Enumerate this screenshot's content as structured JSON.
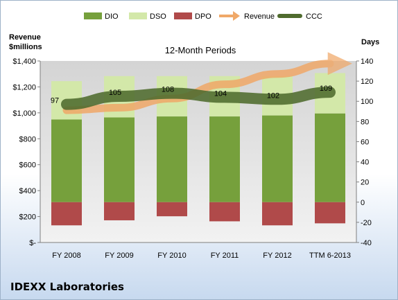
{
  "company": "IDEXX Laboratories",
  "chart_data": {
    "type": "bar",
    "title": "12-Month Periods",
    "ylabel_left": [
      "Revenue",
      "$millions"
    ],
    "ylabel_right": "Days",
    "categories": [
      "FY 2008",
      "FY 2009",
      "FY 2010",
      "FY 2011",
      "FY 2012",
      "TTM 6-2013"
    ],
    "left_axis": {
      "min": 0,
      "max": 1400,
      "ticks": [
        "$-",
        "$200",
        "$400",
        "$600",
        "$800",
        "$1,000",
        "$1,200",
        "$1,400"
      ]
    },
    "right_axis": {
      "min": -40,
      "max": 140,
      "ticks": [
        "-40",
        "-20",
        "0",
        "20",
        "40",
        "60",
        "80",
        "100",
        "120",
        "140"
      ]
    },
    "legend": [
      "DIO",
      "DSO",
      "DPO",
      "Revenue",
      "CCC"
    ],
    "legend_position": "top",
    "colors": {
      "DIO": "#76a03c",
      "DSO": "#d3e8a9",
      "DPO": "#b04a4a",
      "Revenue": "#f0a868",
      "CCC": "#4f6b2e"
    },
    "series": [
      {
        "name": "DIO",
        "unit": "days",
        "values": [
          82,
          84,
          85,
          85,
          86,
          88
        ]
      },
      {
        "name": "DSO",
        "unit": "days",
        "values": [
          38,
          41,
          40,
          40,
          39,
          40
        ]
      },
      {
        "name": "DPO",
        "unit": "days",
        "values": [
          -23,
          -18,
          -14,
          -19,
          -23,
          -21
        ]
      },
      {
        "name": "CCC",
        "unit": "days",
        "values": [
          97,
          105,
          108,
          104,
          102,
          109
        ]
      },
      {
        "name": "Revenue",
        "unit": "$millions",
        "values": [
          1020,
          1040,
          1110,
          1220,
          1300,
          1380
        ]
      }
    ],
    "ccc_labels": [
      "97",
      "105",
      "108",
      "104",
      "102",
      "109"
    ]
  }
}
